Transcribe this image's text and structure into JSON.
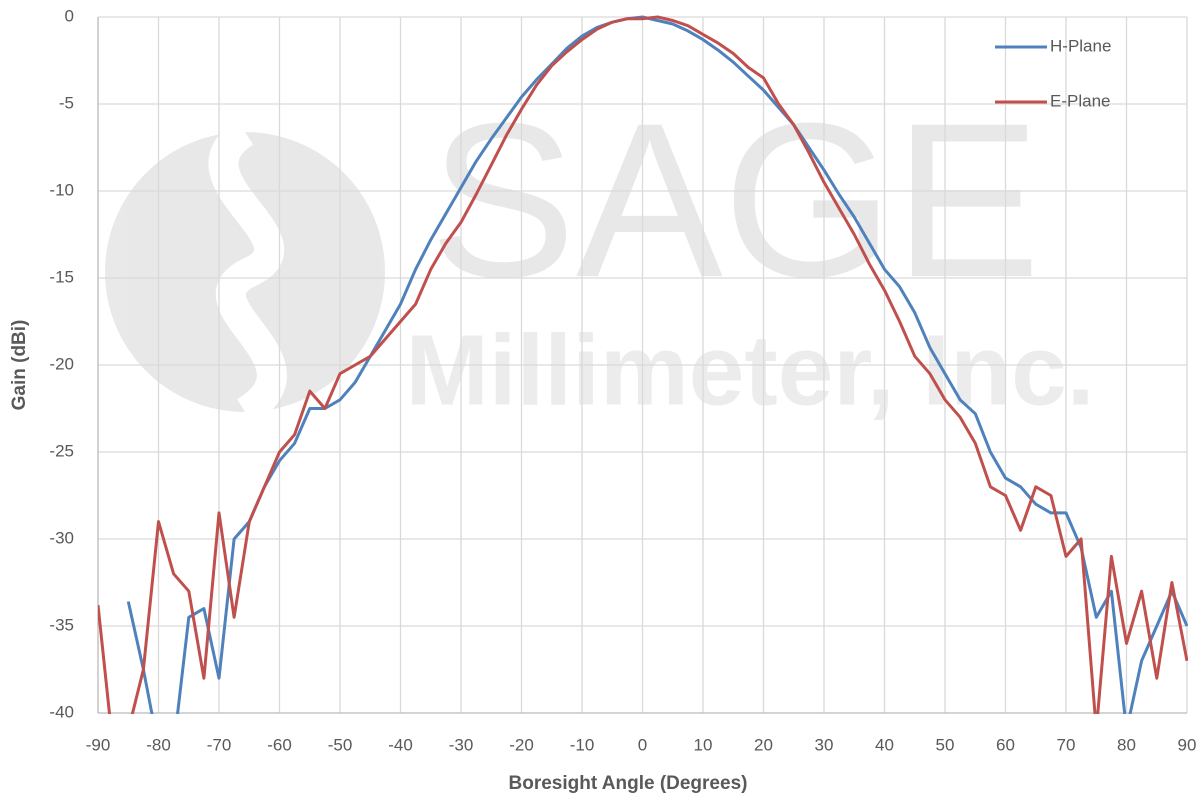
{
  "chart_data": {
    "type": "line",
    "watermark": [
      "SAGE",
      "Millimeter, Inc."
    ],
    "x_label": "Boresight Angle (Degrees)",
    "y_label": "Gain (dBi)",
    "x": [
      -90,
      -87.5,
      -85,
      -82.5,
      -80,
      -77.5,
      -75,
      -72.5,
      -70,
      -67.5,
      -65,
      -62.5,
      -60,
      -57.5,
      -55,
      -52.5,
      -50,
      -47.5,
      -45,
      -42.5,
      -40,
      -37.5,
      -35,
      -32.5,
      -30,
      -27.5,
      -25,
      -22.5,
      -20,
      -17.5,
      -15,
      -12.5,
      -10,
      -7.5,
      -5,
      -2.5,
      0,
      2.5,
      5,
      7.5,
      10,
      12.5,
      15,
      17.5,
      20,
      22.5,
      25,
      27.5,
      30,
      32.5,
      35,
      37.5,
      40,
      42.5,
      45,
      47.5,
      50,
      52.5,
      55,
      57.5,
      60,
      62.5,
      65,
      67.5,
      70,
      72.5,
      75,
      77.5,
      80,
      82.5,
      85,
      87.5,
      90
    ],
    "series": [
      {
        "name": "H-Plane",
        "color": "#4f81bd",
        "values": [
          null,
          null,
          -33.6,
          -37.5,
          -42,
          -42,
          -34.5,
          -34,
          -38,
          -30,
          -29,
          -27,
          -25.5,
          -24.5,
          -22.5,
          -22.5,
          -22,
          -21,
          -19.5,
          -18,
          -16.5,
          -14.5,
          -12.8,
          -11.3,
          -9.8,
          -8.3,
          -7,
          -5.8,
          -4.6,
          -3.6,
          -2.7,
          -1.8,
          -1.1,
          -0.6,
          -0.3,
          -0.1,
          0,
          -0.2,
          -0.4,
          -0.8,
          -1.3,
          -1.9,
          -2.6,
          -3.4,
          -4.2,
          -5.2,
          -6.2,
          -7.5,
          -8.8,
          -10.2,
          -11.5,
          -13,
          -14.5,
          -15.5,
          -17,
          -19,
          -20.5,
          -22,
          -22.8,
          -25,
          -26.5,
          -27,
          -28,
          -28.5,
          -28.5,
          -30.5,
          -34.5,
          -33,
          -41,
          -37,
          -35,
          -33,
          -35
        ]
      },
      {
        "name": "E-Plane",
        "color": "#c0504d",
        "values": [
          -33.8,
          -42,
          -41,
          -37.5,
          -29,
          -32,
          -33,
          -38,
          -28.5,
          -34.5,
          -29,
          -27,
          -25,
          -24,
          -21.5,
          -22.5,
          -20.5,
          -20,
          -19.5,
          -18.5,
          -17.5,
          -16.5,
          -14.5,
          -13,
          -11.8,
          -10.2,
          -8.5,
          -6.8,
          -5.3,
          -3.9,
          -2.8,
          -2,
          -1.3,
          -0.7,
          -0.3,
          -0.1,
          -0.1,
          0,
          -0.2,
          -0.5,
          -1,
          -1.5,
          -2.1,
          -2.9,
          -3.5,
          -5,
          -6.2,
          -7.8,
          -9.5,
          -11,
          -12.5,
          -14.2,
          -15.7,
          -17.5,
          -19.5,
          -20.5,
          -22,
          -23,
          -24.5,
          -27,
          -27.5,
          -29.5,
          -27,
          -27.5,
          -31,
          -30,
          -41,
          -31,
          -36,
          -33,
          -38,
          -32.5,
          -37
        ]
      }
    ],
    "xlim": [
      -90,
      90
    ],
    "ylim": [
      -40,
      0
    ],
    "xticks": [
      -90,
      -80,
      -70,
      -60,
      -50,
      -40,
      -30,
      -20,
      -10,
      0,
      10,
      20,
      30,
      40,
      50,
      60,
      70,
      80,
      90
    ],
    "yticks": [
      -40,
      -35,
      -30,
      -25,
      -20,
      -15,
      -10,
      -5,
      0
    ],
    "grid": true,
    "legend": "upper right"
  }
}
